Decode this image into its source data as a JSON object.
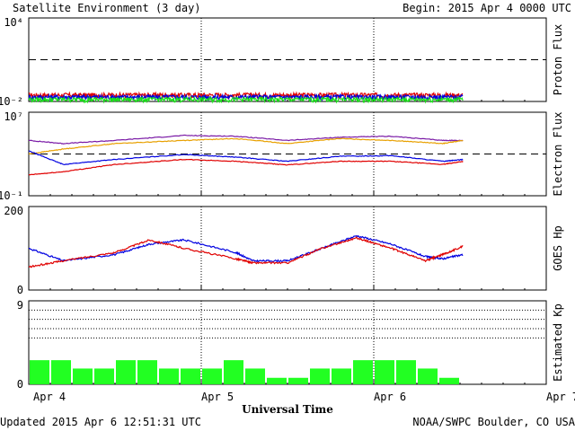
{
  "header": {
    "title": "Satellite Environment (3 day)",
    "begin": "Begin:  2015 Apr 4 0000 UTC"
  },
  "footer": {
    "updated": "Updated 2015 Apr  6 12:51:31 UTC",
    "credit": "NOAA/SWPC Boulder, CO USA"
  },
  "x_axis": {
    "label": "Universal Time",
    "ticks": [
      "Apr 4",
      "Apr 5",
      "Apr 6",
      "Apr 7"
    ]
  },
  "colors": {
    "red": "#e00000",
    "blue": "#0000e0",
    "green": "#18e018",
    "purple": "#7a1aa6",
    "orange": "#e8a000",
    "kp": "#22ff22"
  },
  "chart_data": [
    {
      "type": "line",
      "ylabel": "Proton Flux",
      "yticks": [
        "10⁴",
        "10⁻²"
      ],
      "yscale": "log",
      "ylim": [
        0.01,
        10000
      ],
      "threshold": 10,
      "x_range_days": [
        0,
        3
      ],
      "series": [
        {
          "color_key": "red",
          "level": 0.025
        },
        {
          "color_key": "blue",
          "level": 0.018
        },
        {
          "color_key": "green",
          "level": 0.012
        }
      ],
      "data_end_day": 2.52
    },
    {
      "type": "line",
      "ylabel": "Electron Flux",
      "yticks": [
        "10⁷",
        "10⁻¹"
      ],
      "yscale": "log",
      "ylim": [
        0.1,
        10000000
      ],
      "threshold": 1000,
      "series": [
        {
          "color_key": "purple",
          "x": [
            0,
            0.2,
            0.5,
            0.9,
            1.2,
            1.5,
            1.8,
            2.1,
            2.4,
            2.52
          ],
          "y": [
            20000,
            10000,
            20000,
            60000,
            50000,
            20000,
            40000,
            50000,
            20000,
            20000
          ]
        },
        {
          "color_key": "orange",
          "x": [
            0,
            0.2,
            0.5,
            0.9,
            1.2,
            1.5,
            1.8,
            2.1,
            2.4,
            2.52
          ],
          "y": [
            1000,
            3000,
            10000,
            20000,
            30000,
            10000,
            30000,
            20000,
            10000,
            20000
          ]
        },
        {
          "color_key": "blue",
          "x": [
            0,
            0.2,
            0.5,
            0.9,
            1.2,
            1.5,
            1.8,
            2.1,
            2.4,
            2.52
          ],
          "y": [
            2000,
            100,
            300,
            900,
            500,
            200,
            600,
            700,
            200,
            300
          ]
        },
        {
          "color_key": "red",
          "x": [
            0,
            0.2,
            0.5,
            0.9,
            1.2,
            1.5,
            1.8,
            2.1,
            2.4,
            2.52
          ],
          "y": [
            10,
            20,
            100,
            300,
            200,
            90,
            200,
            200,
            100,
            200
          ]
        }
      ]
    },
    {
      "type": "line",
      "ylabel": "GOES Hp",
      "yticks": [
        "200",
        "0"
      ],
      "ylim": [
        0,
        200
      ],
      "series": [
        {
          "color_key": "blue",
          "x": [
            0,
            0.2,
            0.5,
            0.7,
            0.9,
            1.2,
            1.3,
            1.5,
            1.7,
            1.9,
            2.1,
            2.3,
            2.4,
            2.52
          ],
          "y": [
            100,
            70,
            85,
            110,
            120,
            90,
            70,
            70,
            100,
            130,
            110,
            80,
            75,
            85
          ]
        },
        {
          "color_key": "red",
          "x": [
            0,
            0.2,
            0.5,
            0.7,
            0.9,
            1.2,
            1.3,
            1.5,
            1.7,
            1.9,
            2.1,
            2.3,
            2.4,
            2.52
          ],
          "y": [
            55,
            70,
            90,
            120,
            100,
            75,
            65,
            65,
            100,
            125,
            100,
            70,
            85,
            105
          ]
        }
      ]
    },
    {
      "type": "bar",
      "ylabel": "Estimated Kp",
      "yticks": [
        "9",
        "0"
      ],
      "ylim": [
        0,
        9
      ],
      "gridlines": [
        5,
        6,
        7,
        8,
        9
      ],
      "values": [
        2.6,
        2.6,
        1.7,
        1.7,
        2.6,
        2.6,
        1.7,
        1.7,
        1.7,
        2.6,
        1.7,
        0.7,
        0.7,
        1.7,
        1.7,
        2.6,
        2.6,
        2.6,
        1.7,
        0.7
      ]
    }
  ]
}
